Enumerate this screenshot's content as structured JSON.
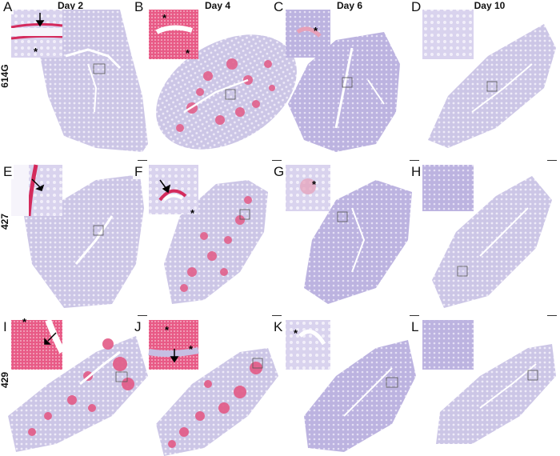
{
  "columns": [
    "Day 2",
    "Day 4",
    "Day 6",
    "Day 10"
  ],
  "rows": [
    "614G",
    "427",
    "429"
  ],
  "panels": [
    "A",
    "B",
    "C",
    "D",
    "E",
    "F",
    "G",
    "H",
    "I",
    "J",
    "K",
    "L"
  ],
  "markers": {
    "asterisk": "*",
    "arrow": "arrow"
  },
  "colors": {
    "tissue": "#c9c3e3",
    "stain": "#e0406e",
    "lumen": "#ffffff",
    "inset_bg": "#d8d2ec"
  }
}
